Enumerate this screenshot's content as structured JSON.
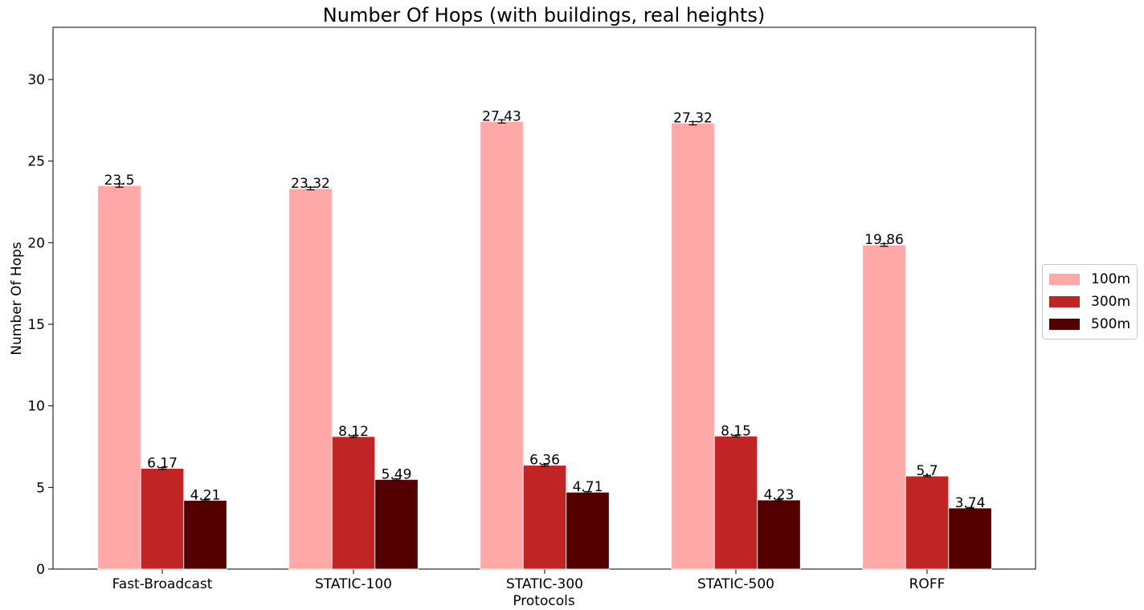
{
  "chart_data": {
    "type": "bar",
    "title": "Number Of Hops (with buildings, real heights)",
    "xlabel": "Protocols",
    "ylabel": "Number Of Hops",
    "categories": [
      "Fast-Broadcast",
      "STATIC-100",
      "STATIC-300",
      "STATIC-500",
      "ROFF"
    ],
    "series": [
      {
        "name": "100m",
        "color": "#ffa8a8",
        "values": [
          23.5,
          23.32,
          27.43,
          27.32,
          19.86
        ],
        "labels": [
          "23.5",
          "23.32",
          "27.43",
          "27.32",
          "19.86"
        ],
        "errors": [
          0.1,
          0.08,
          0.1,
          0.1,
          0.08
        ]
      },
      {
        "name": "300m",
        "color": "#c02424",
        "values": [
          6.17,
          8.12,
          6.36,
          8.15,
          5.7
        ],
        "labels": [
          "6.17",
          "8.12",
          "6.36",
          "8.15",
          "5.7"
        ],
        "errors": [
          0.05,
          0.05,
          0.05,
          0.05,
          0.04
        ]
      },
      {
        "name": "500m",
        "color": "#540000",
        "values": [
          4.21,
          5.49,
          4.71,
          4.23,
          3.74
        ],
        "labels": [
          "4.21",
          "5.49",
          "4.71",
          "4.23",
          "3.74"
        ],
        "errors": [
          0.04,
          0.04,
          0.04,
          0.04,
          0.03
        ]
      }
    ],
    "ylim": [
      0,
      33.2
    ],
    "yticks": [
      0,
      5,
      10,
      15,
      20,
      25,
      30
    ],
    "ytick_labels": [
      "0",
      "5",
      "10",
      "15",
      "20",
      "25",
      "30"
    ],
    "grid": false,
    "legend_position": "right-center"
  }
}
